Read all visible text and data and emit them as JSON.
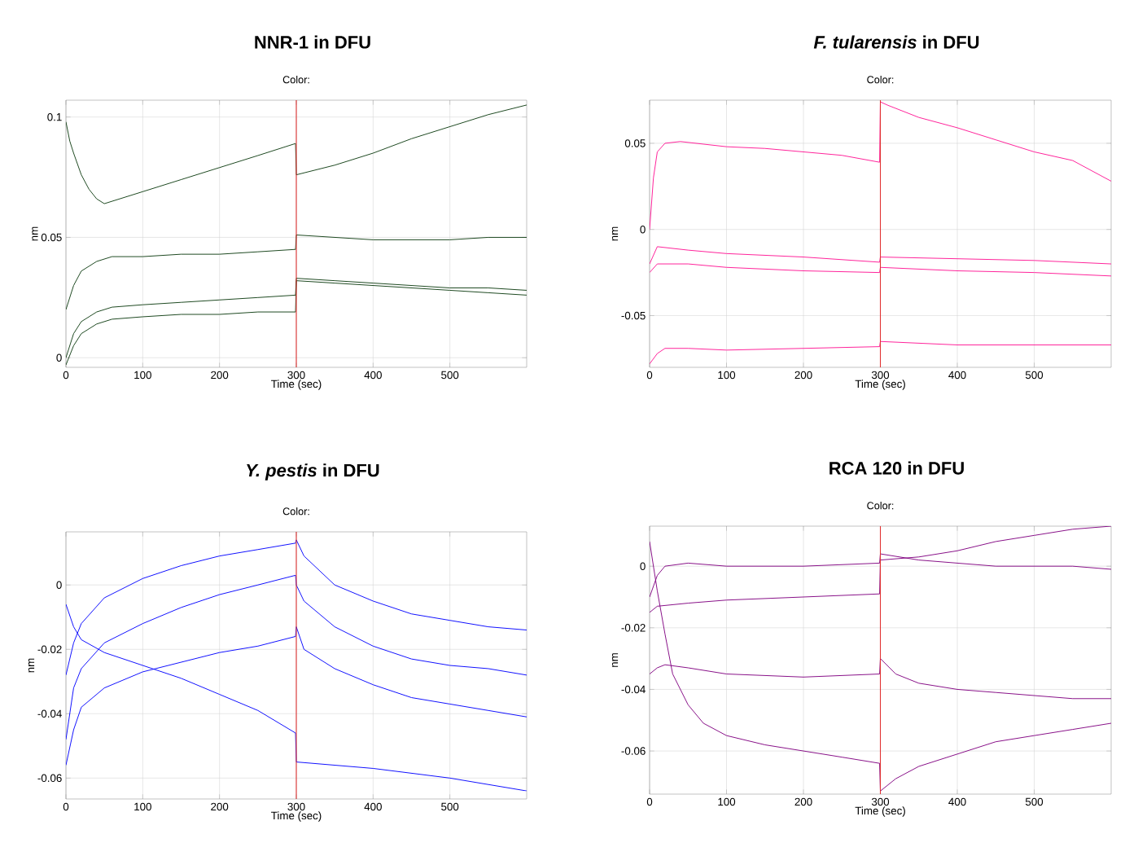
{
  "chart_data": [
    {
      "type": "line",
      "title": "NNR-1 in DFU",
      "subtitle": "Color:",
      "xlabel": "Time (sec)",
      "ylabel": "nm",
      "xlim": [
        0,
        600
      ],
      "xticks": [
        0,
        100,
        200,
        300,
        400,
        500
      ],
      "ylim": [
        -0.004,
        0.107
      ],
      "yticks": [
        0,
        0.05,
        0.1
      ],
      "grid": true,
      "marker": "none",
      "line_style": "solid",
      "ref_lines": [
        {
          "axis": "x",
          "value": 300,
          "color": "#e03030"
        }
      ],
      "series": [
        {
          "color": "#0f3d12",
          "x": [
            0,
            5,
            10,
            20,
            30,
            40,
            50,
            70,
            100,
            150,
            200,
            250,
            299,
            300,
            350,
            400,
            450,
            500,
            550,
            600
          ],
          "values": [
            0.098,
            0.09,
            0.085,
            0.076,
            0.07,
            0.066,
            0.064,
            0.066,
            0.069,
            0.074,
            0.079,
            0.084,
            0.089,
            0.076,
            0.08,
            0.085,
            0.091,
            0.096,
            0.101,
            0.105
          ]
        },
        {
          "color": "#0f3d12",
          "x": [
            0,
            10,
            20,
            40,
            60,
            100,
            150,
            200,
            250,
            299,
            300,
            350,
            400,
            450,
            500,
            550,
            600
          ],
          "values": [
            0.02,
            0.03,
            0.036,
            0.04,
            0.042,
            0.042,
            0.043,
            0.043,
            0.044,
            0.045,
            0.051,
            0.05,
            0.049,
            0.049,
            0.049,
            0.05,
            0.05
          ]
        },
        {
          "color": "#0f3d12",
          "x": [
            0,
            10,
            20,
            40,
            60,
            100,
            150,
            200,
            250,
            299,
            300,
            350,
            400,
            450,
            500,
            550,
            600
          ],
          "values": [
            0.0,
            0.01,
            0.015,
            0.019,
            0.021,
            0.022,
            0.023,
            0.024,
            0.025,
            0.026,
            0.033,
            0.032,
            0.031,
            0.03,
            0.029,
            0.029,
            0.028
          ]
        },
        {
          "color": "#0f3d12",
          "x": [
            0,
            10,
            20,
            40,
            60,
            100,
            150,
            200,
            250,
            299,
            300,
            350,
            400,
            450,
            500,
            550,
            600
          ],
          "values": [
            -0.003,
            0.005,
            0.01,
            0.014,
            0.016,
            0.017,
            0.018,
            0.018,
            0.019,
            0.019,
            0.032,
            0.031,
            0.03,
            0.029,
            0.028,
            0.027,
            0.026
          ]
        }
      ]
    },
    {
      "type": "line",
      "title": "*F. tularensis* in DFU",
      "subtitle": "Color:",
      "xlabel": "Time (sec)",
      "ylabel": "nm",
      "xlim": [
        0,
        600
      ],
      "xticks": [
        0,
        100,
        200,
        300,
        400,
        500
      ],
      "ylim": [
        -0.08,
        0.075
      ],
      "yticks": [
        -0.05,
        0,
        0.05
      ],
      "grid": true,
      "marker": "none",
      "line_style": "solid",
      "ref_lines": [
        {
          "axis": "x",
          "value": 300,
          "color": "#e03030"
        }
      ],
      "series": [
        {
          "color": "#ff1493",
          "x": [
            0,
            5,
            10,
            20,
            40,
            100,
            150,
            200,
            250,
            299,
            300,
            310,
            350,
            400,
            450,
            500,
            550,
            600
          ],
          "values": [
            0.0,
            0.03,
            0.045,
            0.05,
            0.051,
            0.048,
            0.047,
            0.045,
            0.043,
            0.039,
            0.074,
            0.072,
            0.065,
            0.059,
            0.052,
            0.045,
            0.04,
            0.028
          ]
        },
        {
          "color": "#ff1493",
          "x": [
            0,
            10,
            50,
            100,
            200,
            299,
            300,
            400,
            500,
            600
          ],
          "values": [
            -0.02,
            -0.01,
            -0.012,
            -0.014,
            -0.016,
            -0.019,
            -0.016,
            -0.017,
            -0.018,
            -0.02
          ]
        },
        {
          "color": "#ff1493",
          "x": [
            0,
            10,
            50,
            100,
            200,
            299,
            300,
            400,
            500,
            600
          ],
          "values": [
            -0.025,
            -0.02,
            -0.02,
            -0.022,
            -0.024,
            -0.025,
            -0.022,
            -0.024,
            -0.025,
            -0.027
          ]
        },
        {
          "color": "#ff1493",
          "x": [
            0,
            10,
            20,
            50,
            100,
            200,
            299,
            300,
            400,
            500,
            600
          ],
          "values": [
            -0.078,
            -0.072,
            -0.069,
            -0.069,
            -0.07,
            -0.069,
            -0.068,
            -0.065,
            -0.067,
            -0.067,
            -0.067
          ]
        }
      ]
    },
    {
      "type": "line",
      "title": "*Y. pestis* in DFU",
      "subtitle": "Color:",
      "xlabel": "Time (sec)",
      "ylabel": "nm",
      "xlim": [
        0,
        600
      ],
      "xticks": [
        0,
        100,
        200,
        300,
        400,
        500
      ],
      "ylim": [
        -0.0665,
        0.0165
      ],
      "yticks": [
        -0.06,
        -0.04,
        -0.02,
        0
      ],
      "grid": true,
      "marker": "none",
      "line_style": "solid",
      "ref_lines": [
        {
          "axis": "x",
          "value": 300,
          "color": "#e03030"
        }
      ],
      "series": [
        {
          "color": "#0000ff",
          "x": [
            0,
            10,
            20,
            50,
            100,
            150,
            200,
            250,
            299,
            300,
            310,
            350,
            400,
            450,
            500,
            550,
            600
          ],
          "values": [
            -0.028,
            -0.018,
            -0.012,
            -0.004,
            0.002,
            0.006,
            0.009,
            0.011,
            0.013,
            0.014,
            0.009,
            0.0,
            -0.005,
            -0.009,
            -0.011,
            -0.013,
            -0.014
          ]
        },
        {
          "color": "#0000ff",
          "x": [
            0,
            10,
            20,
            50,
            100,
            150,
            200,
            250,
            299,
            300,
            310,
            350,
            400,
            450,
            500,
            550,
            600
          ],
          "values": [
            -0.048,
            -0.032,
            -0.026,
            -0.018,
            -0.012,
            -0.007,
            -0.003,
            0.0,
            0.003,
            0.0,
            -0.005,
            -0.013,
            -0.019,
            -0.023,
            -0.025,
            -0.026,
            -0.028
          ]
        },
        {
          "color": "#0000ff",
          "x": [
            0,
            10,
            20,
            50,
            100,
            150,
            200,
            250,
            299,
            300,
            400,
            500,
            600
          ],
          "values": [
            -0.006,
            -0.013,
            -0.017,
            -0.021,
            -0.025,
            -0.029,
            -0.034,
            -0.039,
            -0.046,
            -0.055,
            -0.057,
            -0.06,
            -0.064
          ]
        },
        {
          "color": "#0000ff",
          "x": [
            0,
            10,
            20,
            50,
            100,
            150,
            200,
            250,
            299,
            300,
            310,
            350,
            400,
            450,
            500,
            550,
            600
          ],
          "values": [
            -0.056,
            -0.045,
            -0.038,
            -0.032,
            -0.027,
            -0.024,
            -0.021,
            -0.019,
            -0.016,
            -0.013,
            -0.02,
            -0.026,
            -0.031,
            -0.035,
            -0.037,
            -0.039,
            -0.041
          ]
        }
      ]
    },
    {
      "type": "line",
      "title": "RCA 120 in DFU",
      "subtitle": "Color:",
      "xlabel": "Time (sec)",
      "ylabel": "nm",
      "xlim": [
        0,
        600
      ],
      "xticks": [
        0,
        100,
        200,
        300,
        400,
        500
      ],
      "ylim": [
        -0.074,
        0.013
      ],
      "yticks": [
        -0.06,
        -0.04,
        -0.02,
        0
      ],
      "grid": true,
      "marker": "none",
      "line_style": "solid",
      "ref_lines": [
        {
          "axis": "x",
          "value": 300,
          "color": "#e03030"
        }
      ],
      "series": [
        {
          "color": "#800080",
          "x": [
            0,
            10,
            20,
            50,
            100,
            200,
            299,
            300,
            350,
            400,
            450,
            500,
            550,
            600
          ],
          "values": [
            -0.01,
            -0.003,
            0.0,
            0.001,
            0.0,
            0.0,
            0.001,
            0.004,
            0.002,
            0.001,
            0.0,
            0.0,
            0.0,
            -0.001
          ]
        },
        {
          "color": "#800080",
          "x": [
            0,
            10,
            50,
            100,
            200,
            299,
            300,
            350,
            400,
            450,
            500,
            550,
            600
          ],
          "values": [
            -0.015,
            -0.013,
            -0.012,
            -0.011,
            -0.01,
            -0.009,
            0.002,
            0.003,
            0.005,
            0.008,
            0.01,
            0.012,
            0.013
          ]
        },
        {
          "color": "#800080",
          "x": [
            0,
            10,
            20,
            50,
            100,
            200,
            299,
            300,
            320,
            350,
            400,
            450,
            500,
            550,
            600
          ],
          "values": [
            -0.035,
            -0.033,
            -0.032,
            -0.033,
            -0.035,
            -0.036,
            -0.035,
            -0.03,
            -0.035,
            -0.038,
            -0.04,
            -0.041,
            -0.042,
            -0.043,
            -0.043
          ]
        },
        {
          "color": "#800080",
          "x": [
            0,
            10,
            20,
            30,
            50,
            70,
            100,
            150,
            200,
            250,
            299,
            300,
            320,
            350,
            400,
            450,
            500,
            550,
            600
          ],
          "values": [
            0.008,
            -0.008,
            -0.022,
            -0.035,
            -0.045,
            -0.051,
            -0.055,
            -0.058,
            -0.06,
            -0.062,
            -0.064,
            -0.073,
            -0.069,
            -0.065,
            -0.061,
            -0.057,
            -0.055,
            -0.053,
            -0.051
          ]
        }
      ]
    }
  ]
}
